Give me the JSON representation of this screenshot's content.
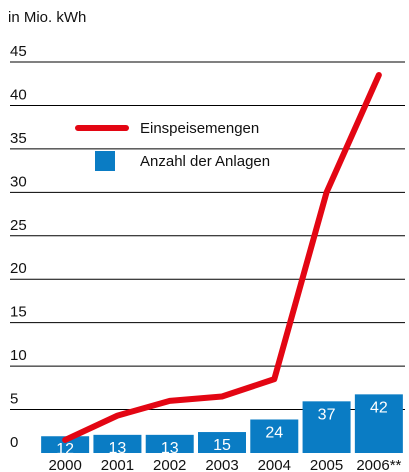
{
  "chart_data": {
    "type": "bar_line",
    "subtitle": "in Mio. kWh",
    "categories": [
      "2000",
      "2001",
      "2002",
      "2003",
      "2004",
      "2005",
      "2006**"
    ],
    "series": [
      {
        "name": "Einspeisemengen",
        "type": "line",
        "color": "#e30613",
        "values": [
          1.5,
          4.3,
          6,
          6.5,
          8.5,
          30,
          43.5
        ]
      },
      {
        "name": "Anzahl der Anlagen",
        "type": "bar",
        "axis": "y2",
        "color": "#0a7cc4",
        "values": [
          12,
          13,
          13,
          15,
          24,
          37,
          42
        ]
      }
    ],
    "ylim": [
      0,
      45
    ],
    "yticks": [
      0,
      5,
      10,
      15,
      20,
      25,
      30,
      35,
      40,
      45
    ],
    "y2lim": [
      0,
      280
    ],
    "grid": true
  }
}
